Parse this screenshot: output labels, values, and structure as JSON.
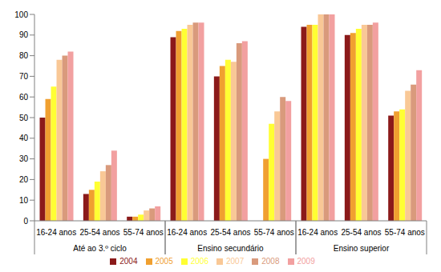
{
  "chart_data": {
    "type": "bar",
    "categories": [
      "16-24 anos",
      "25-54 anos",
      "55-74 anos",
      "16-24 anos",
      "25-54 anos",
      "55-74 anos",
      "16-24 anos",
      "25-54 anos",
      "55-74 anos"
    ],
    "category_groups": [
      "Até ao 3.º ciclo",
      "Até ao 3.º ciclo",
      "Até ao 3.º ciclo",
      "Ensino secundário",
      "Ensino secundário",
      "Ensino secundário",
      "Ensino superior",
      "Ensino superior",
      "Ensino superior"
    ],
    "series": [
      {
        "name": "2004",
        "color": "#8b1a1a",
        "values": [
          50,
          13,
          2,
          89,
          70,
          null,
          94,
          90,
          51
        ]
      },
      {
        "name": "2005",
        "color": "#f0a030",
        "values": [
          59,
          15,
          2,
          92,
          75,
          30,
          95,
          91,
          53
        ]
      },
      {
        "name": "2006",
        "color": "#ffff33",
        "values": [
          65,
          19,
          3,
          93,
          78,
          47,
          95,
          93,
          54
        ]
      },
      {
        "name": "2007",
        "color": "#f9c896",
        "values": [
          78,
          24,
          5,
          95,
          77,
          53,
          100,
          95,
          63
        ]
      },
      {
        "name": "2008",
        "color": "#d99a7c",
        "values": [
          80,
          27,
          6,
          96,
          86,
          60,
          100,
          95,
          66
        ]
      },
      {
        "name": "2009",
        "color": "#f2a0a0",
        "values": [
          82,
          34,
          7,
          96,
          87,
          58,
          100,
          96,
          73
        ]
      }
    ],
    "ylim": [
      0,
      100
    ],
    "yticks": [
      0,
      10,
      20,
      30,
      40,
      50,
      60,
      70,
      80,
      90,
      100
    ],
    "grid": false,
    "legend": "bottom"
  }
}
